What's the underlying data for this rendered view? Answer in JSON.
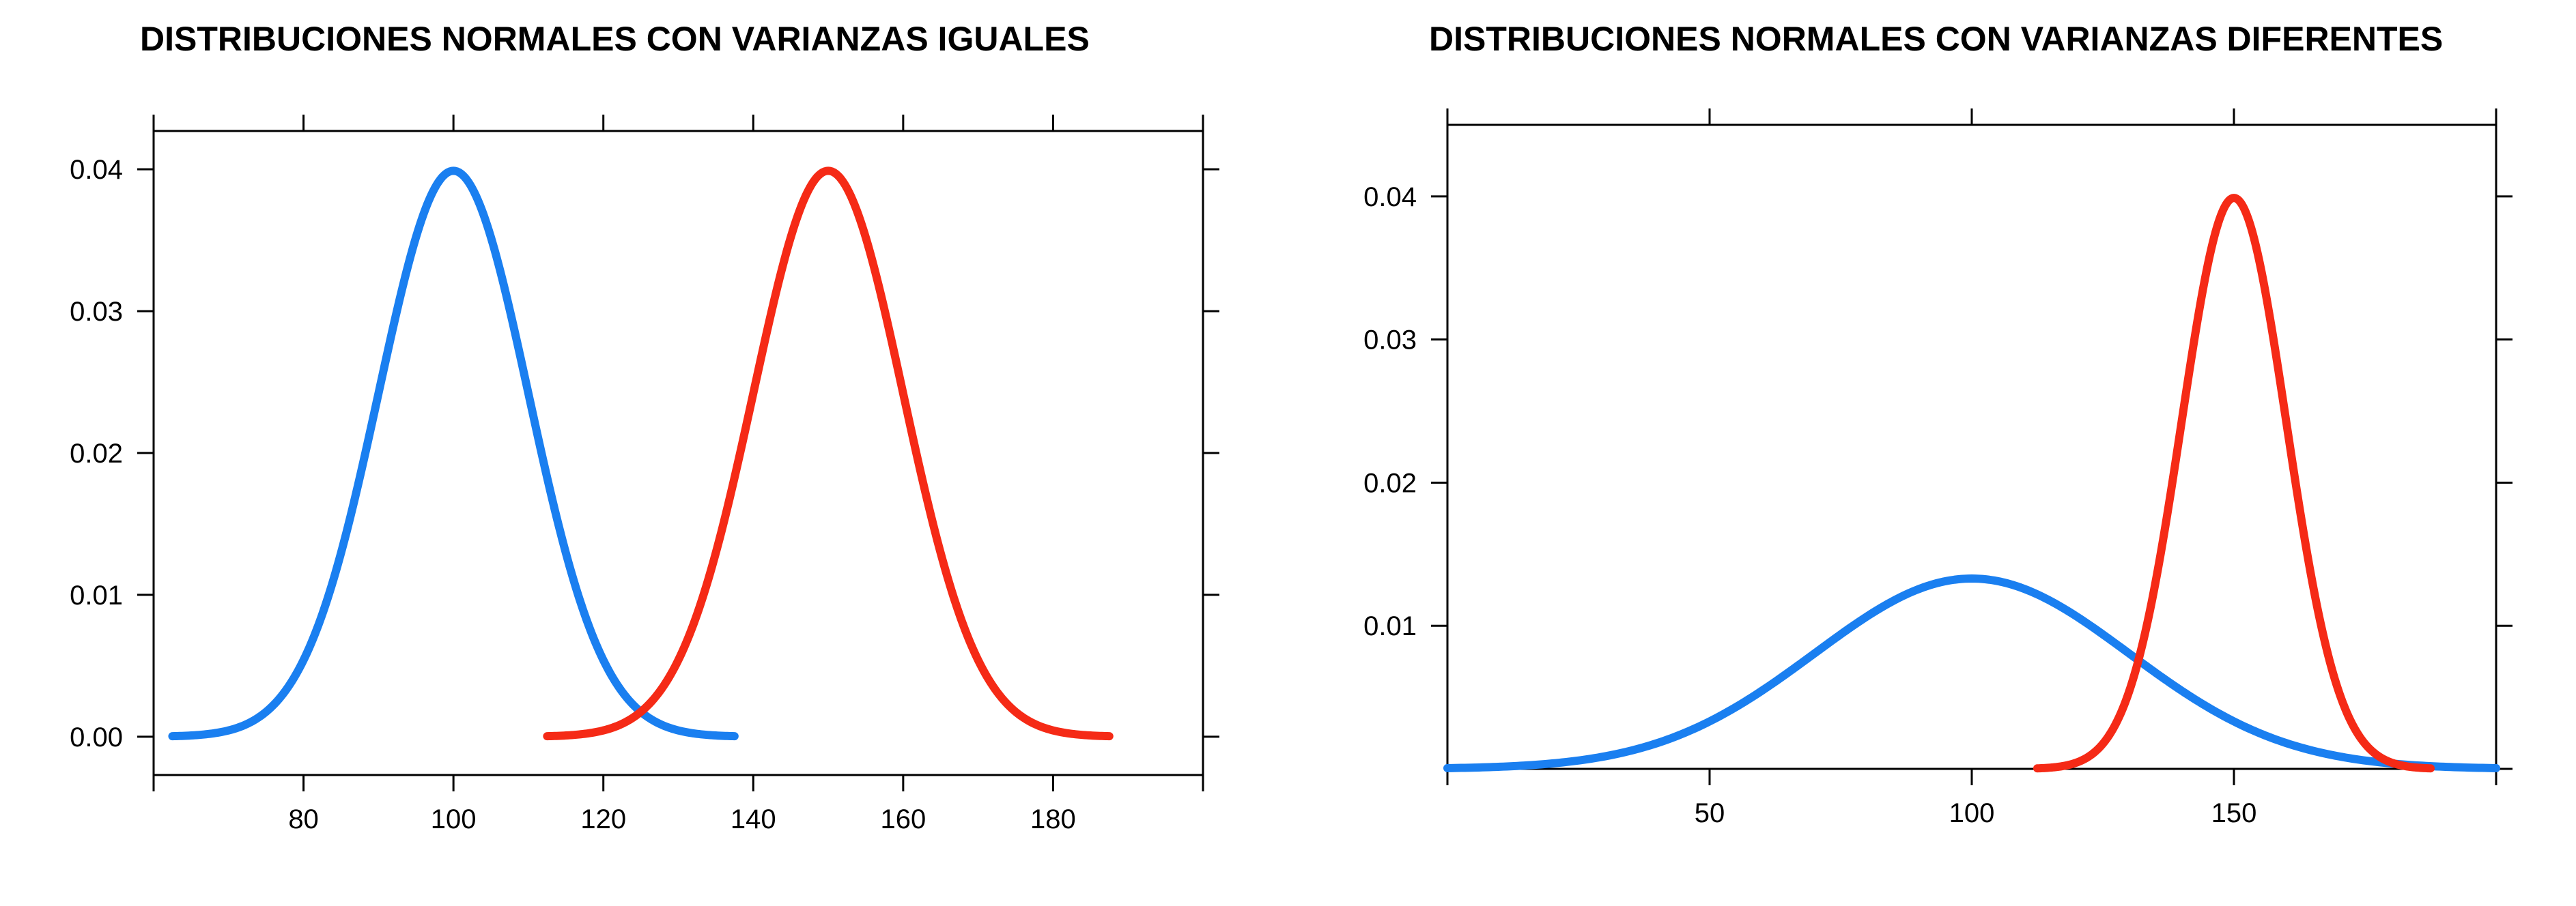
{
  "chart_data": [
    {
      "type": "line",
      "title": "DISTRIBUCIONES NORMALES CON VARIANZAS IGUALES",
      "xlabel": "",
      "ylabel": "",
      "xlim": [
        60,
        200
      ],
      "ylim": [
        -0.0027,
        0.0427
      ],
      "x_ticks": [
        80,
        100,
        120,
        140,
        160,
        180
      ],
      "x_tick_labels": [
        "80",
        "100",
        "120",
        "140",
        "160",
        "180"
      ],
      "y_ticks": [
        0.0,
        0.01,
        0.02,
        0.03,
        0.04
      ],
      "y_tick_labels": [
        "0.00",
        "0.01",
        "0.02",
        "0.03",
        "0.04"
      ],
      "grid": false,
      "series": [
        {
          "mean": 100,
          "sd": 10,
          "x_range": [
            62.5,
            137.5
          ],
          "color": "#1a7ff0"
        },
        {
          "mean": 150,
          "sd": 10,
          "x_range": [
            112.5,
            187.5
          ],
          "color": "#f52a16"
        }
      ]
    },
    {
      "type": "line",
      "title": "DISTRIBUCIONES NORMALES CON VARIANZAS DIFERENTES",
      "xlabel": "",
      "ylabel": "",
      "xlim": [
        0,
        200
      ],
      "ylim": [
        0,
        0.045
      ],
      "x_ticks": [
        50,
        100,
        150
      ],
      "x_tick_labels": [
        "50",
        "100",
        "150"
      ],
      "y_ticks": [
        0.01,
        0.02,
        0.03,
        0.04
      ],
      "y_tick_labels": [
        "0.01",
        "0.02",
        "0.03",
        "0.04"
      ],
      "grid": false,
      "series": [
        {
          "mean": 100,
          "sd": 30,
          "x_range": [
            0,
            200
          ],
          "color": "#1a7ff0"
        },
        {
          "mean": 150,
          "sd": 10,
          "x_range": [
            112.5,
            187.5
          ],
          "color": "#f52a16"
        }
      ]
    }
  ]
}
